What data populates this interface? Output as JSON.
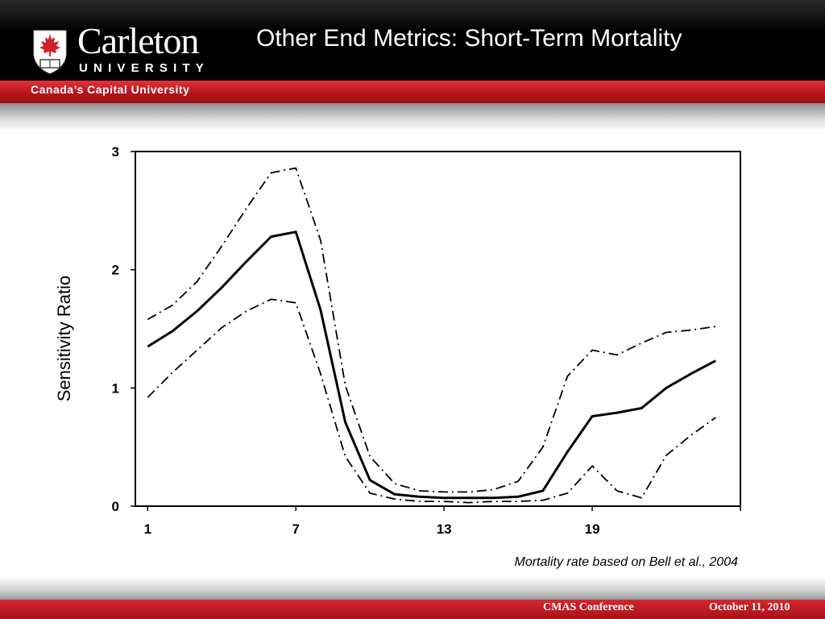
{
  "header": {
    "logo_name": "Carleton",
    "logo_sub": "UNIVERSITY",
    "tagline": "Canada’s Capital University",
    "title": "Other End Metrics: Short-Term Mortality"
  },
  "chart_data": {
    "type": "line",
    "title": "",
    "xlabel": "",
    "ylabel": "Sensitivity Ratio",
    "xlim": [
      0.5,
      25
    ],
    "ylim": [
      0,
      3
    ],
    "xticks": [
      1,
      7,
      13,
      19
    ],
    "xtick_labels": [
      "1",
      "7",
      "13",
      "19"
    ],
    "yticks": [
      0,
      1,
      2,
      3
    ],
    "ytick_labels": [
      "0",
      "1",
      "2",
      "3"
    ],
    "grid": false,
    "legend": "none",
    "x": [
      1,
      2,
      3,
      4,
      5,
      6,
      7,
      8,
      9,
      10,
      11,
      12,
      13,
      14,
      15,
      16,
      17,
      18,
      19,
      20,
      21,
      22,
      23,
      24
    ],
    "series": [
      {
        "style": "solid",
        "values": [
          1.35,
          1.48,
          1.65,
          1.85,
          2.07,
          2.28,
          2.32,
          1.66,
          0.71,
          0.22,
          0.1,
          0.08,
          0.07,
          0.07,
          0.07,
          0.08,
          0.13,
          0.46,
          0.76,
          0.79,
          0.83,
          1.0,
          1.12,
          1.23
        ]
      },
      {
        "style": "dashdot",
        "values": [
          1.58,
          1.7,
          1.9,
          2.2,
          2.52,
          2.82,
          2.86,
          2.25,
          1.02,
          0.42,
          0.19,
          0.13,
          0.12,
          0.12,
          0.14,
          0.21,
          0.5,
          1.1,
          1.32,
          1.28,
          1.38,
          1.47,
          1.49,
          1.52
        ]
      },
      {
        "style": "dashdot",
        "values": [
          0.92,
          1.13,
          1.32,
          1.51,
          1.65,
          1.75,
          1.72,
          1.12,
          0.42,
          0.11,
          0.06,
          0.04,
          0.04,
          0.03,
          0.04,
          0.04,
          0.05,
          0.11,
          0.34,
          0.13,
          0.07,
          0.43,
          0.6,
          0.75
        ]
      }
    ]
  },
  "note": "Mortality rate based on Bell et al., 2004",
  "footer": {
    "conference": "CMAS Conference",
    "date": "October 11, 2010"
  }
}
